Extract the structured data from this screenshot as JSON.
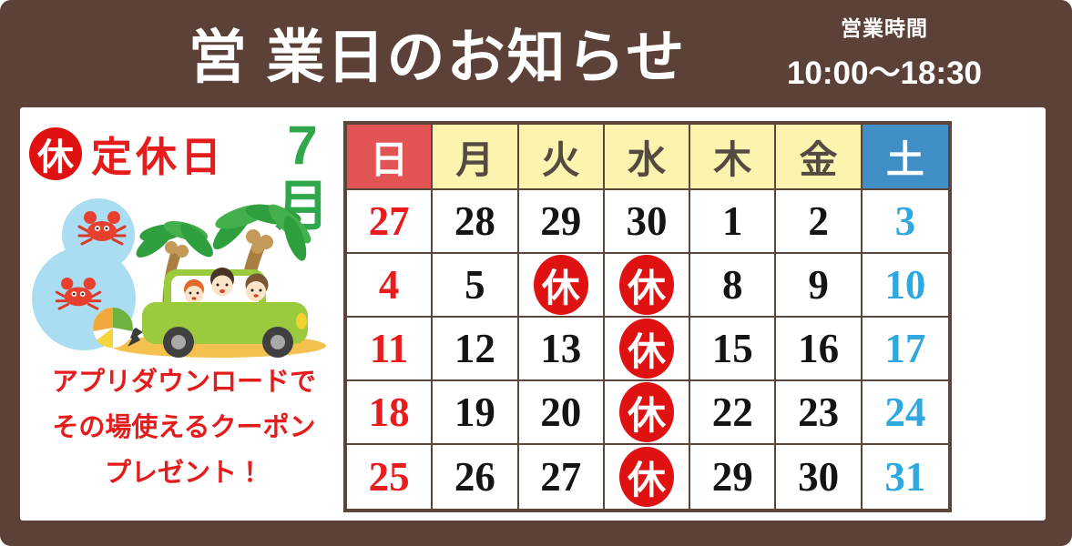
{
  "header": {
    "title": "営 業日のお知らせ",
    "hours_label": "営業時間",
    "hours_value": "10:00～18:30"
  },
  "legend": {
    "badge": "休",
    "label": "定休日"
  },
  "month": {
    "numeral": "7",
    "suffix": "月"
  },
  "promo": {
    "lines": [
      "アプリダウンロードで",
      "その場使えるクーポン",
      "プレゼント！"
    ]
  },
  "calendar": {
    "weekday_headers": [
      {
        "t": "日",
        "c": "sun"
      },
      {
        "t": "月",
        "c": "wd"
      },
      {
        "t": "火",
        "c": "wd"
      },
      {
        "t": "水",
        "c": "wd"
      },
      {
        "t": "木",
        "c": "wd"
      },
      {
        "t": "金",
        "c": "wd"
      },
      {
        "t": "土",
        "c": "sat"
      }
    ],
    "rows": [
      [
        {
          "t": "27",
          "c": "sun"
        },
        {
          "t": "28",
          "c": "wd"
        },
        {
          "t": "29",
          "c": "wd"
        },
        {
          "t": "30",
          "c": "wd"
        },
        {
          "t": "1",
          "c": "wd"
        },
        {
          "t": "2",
          "c": "wd"
        },
        {
          "t": "3",
          "c": "sat"
        }
      ],
      [
        {
          "t": "4",
          "c": "sun"
        },
        {
          "t": "5",
          "c": "wd"
        },
        {
          "t": "休",
          "c": "closed"
        },
        {
          "t": "休",
          "c": "closed"
        },
        {
          "t": "8",
          "c": "wd"
        },
        {
          "t": "9",
          "c": "wd"
        },
        {
          "t": "10",
          "c": "sat"
        }
      ],
      [
        {
          "t": "11",
          "c": "sun"
        },
        {
          "t": "12",
          "c": "wd"
        },
        {
          "t": "13",
          "c": "wd"
        },
        {
          "t": "休",
          "c": "closed"
        },
        {
          "t": "15",
          "c": "wd"
        },
        {
          "t": "16",
          "c": "wd"
        },
        {
          "t": "17",
          "c": "sat"
        }
      ],
      [
        {
          "t": "18",
          "c": "sun"
        },
        {
          "t": "19",
          "c": "wd"
        },
        {
          "t": "20",
          "c": "wd"
        },
        {
          "t": "休",
          "c": "closed"
        },
        {
          "t": "22",
          "c": "wd"
        },
        {
          "t": "23",
          "c": "wd"
        },
        {
          "t": "24",
          "c": "sat"
        }
      ],
      [
        {
          "t": "25",
          "c": "sun"
        },
        {
          "t": "26",
          "c": "wd"
        },
        {
          "t": "27",
          "c": "wd"
        },
        {
          "t": "休",
          "c": "closed"
        },
        {
          "t": "29",
          "c": "wd"
        },
        {
          "t": "30",
          "c": "wd"
        },
        {
          "t": "31",
          "c": "sat"
        }
      ]
    ],
    "closed_mark": "休"
  },
  "colors": {
    "frame_brown": "#5c4138",
    "border_brown": "#5e453b",
    "sunday_red": "#e25353",
    "weekday_yellow": "#fbf4af",
    "saturday_blue": "#3f8ec6",
    "closed_red": "#e01111",
    "number_red": "#e81c1c",
    "number_black": "#141414",
    "number_blue": "#2fa8e0",
    "month_green": "#2fa74d",
    "promo_red": "#e51c1c"
  }
}
